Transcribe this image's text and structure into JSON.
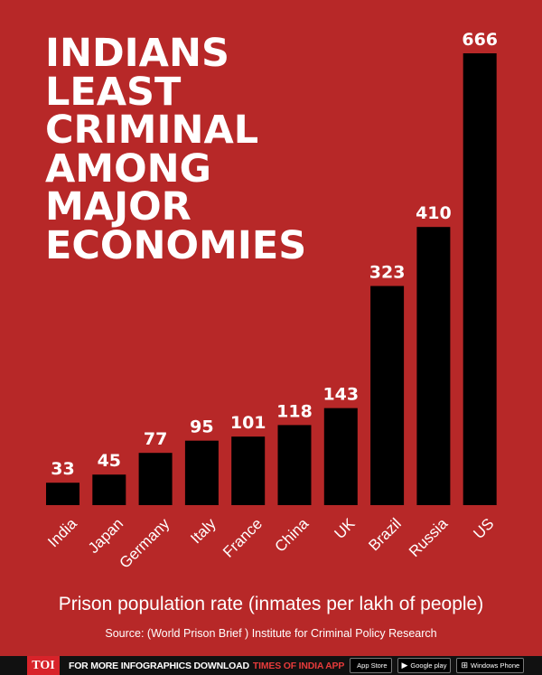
{
  "chart_data": {
    "type": "bar",
    "title": "Indians least criminal among major economies",
    "categories": [
      "India",
      "Japan",
      "Germany",
      "Italy",
      "France",
      "China",
      "UK",
      "Brazil",
      "Russia",
      "US"
    ],
    "values": [
      33,
      45,
      77,
      95,
      101,
      118,
      143,
      323,
      410,
      666
    ],
    "xlabel": "Prison population rate (inmates per lakh of people)",
    "ylim": [
      0,
      666
    ],
    "grid": false,
    "colors": {
      "background": "#b72828",
      "bar": "#000000",
      "text": "#ffffff"
    }
  },
  "source": "Source: (World Prison Brief ) Institute for Criminal Policy Research",
  "footer": {
    "logo": "TOI",
    "text": "FOR MORE  INFOGRAPHICS DOWNLOAD",
    "brand": "TIMES OF INDIA  APP",
    "stores": [
      {
        "icon": "apple-icon",
        "label": "App Store"
      },
      {
        "icon": "play-icon",
        "label": "Google play"
      },
      {
        "icon": "windows-icon",
        "label": "Windows Phone"
      }
    ]
  }
}
